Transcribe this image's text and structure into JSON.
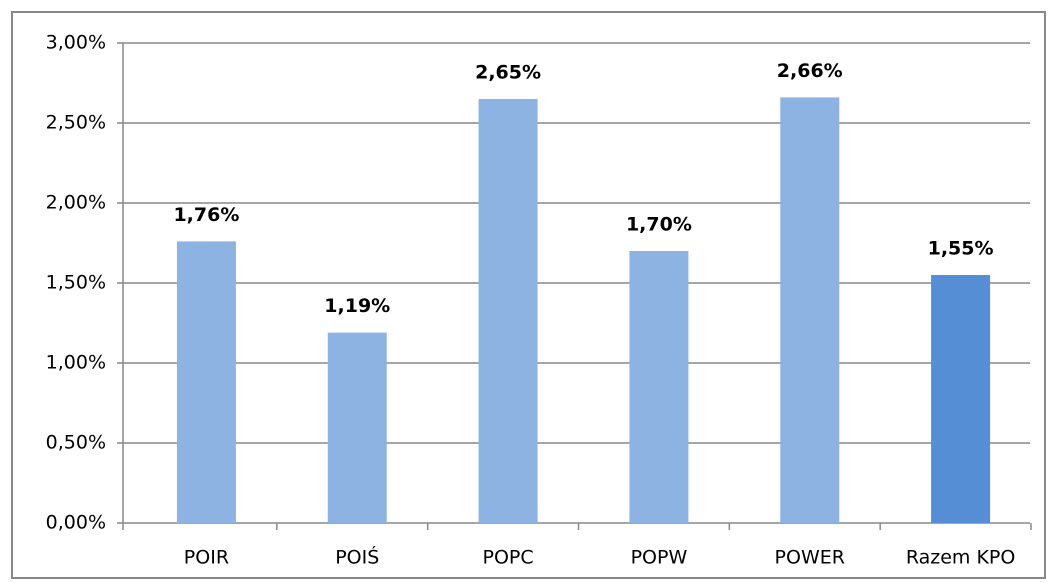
{
  "chart_data": {
    "type": "bar",
    "categories": [
      "POIR",
      "POIŚ",
      "POPC",
      "POPW",
      "POWER",
      "Razem KPO"
    ],
    "values": [
      1.76,
      1.19,
      2.65,
      1.7,
      2.66,
      1.55
    ],
    "value_labels": [
      "1,76%",
      "1,19%",
      "2,65%",
      "1,70%",
      "2,66%",
      "1,55%"
    ],
    "colors": [
      "#8db3e2",
      "#8db3e2",
      "#8db3e2",
      "#8db3e2",
      "#8db3e2",
      "#558ed5"
    ],
    "ylim": [
      0,
      3
    ],
    "yticks": [
      {
        "value": 0,
        "label": "0,00%"
      },
      {
        "value": 0.5,
        "label": "0,50%"
      },
      {
        "value": 1,
        "label": "1,00%"
      },
      {
        "value": 1.5,
        "label": "1,50%"
      },
      {
        "value": 2,
        "label": "2,00%"
      },
      {
        "value": 2.5,
        "label": "2,50%"
      },
      {
        "value": 3,
        "label": "3,00%"
      }
    ],
    "grid": true
  }
}
